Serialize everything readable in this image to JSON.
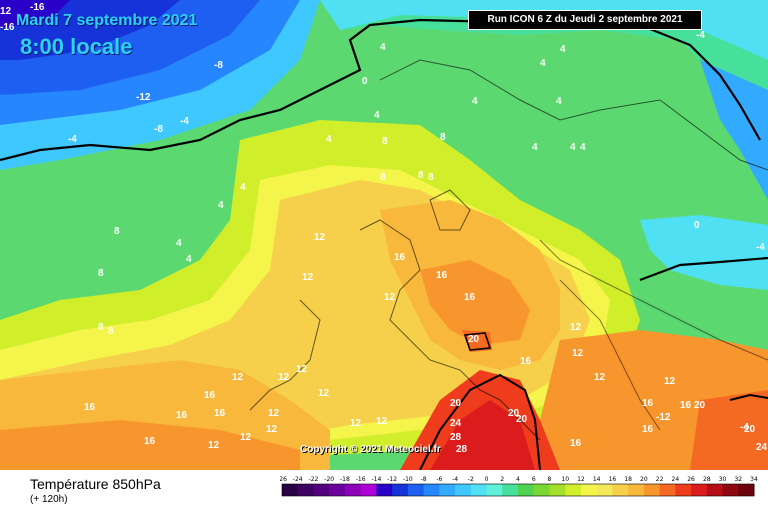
{
  "header": {
    "date": "Mardi 7 septembre 2021",
    "time": "8:00 locale",
    "run": "Run ICON 6 Z du Jeudi 2 septembre 2021",
    "corner_labels": [
      "12",
      "-16",
      "-16"
    ]
  },
  "copyright": "Copyright © 2021 Meteociel.fr",
  "footer": {
    "title": "Température 850hPa",
    "subtitle": "(+ 120h)"
  },
  "legend": {
    "ticks": [
      "-26",
      "-24",
      "-22",
      "-20",
      "-18",
      "-16",
      "-14",
      "-12",
      "-10",
      "-8",
      "-6",
      "-4",
      "-2",
      "0",
      "2",
      "4",
      "6",
      "8",
      "10",
      "12",
      "14",
      "16",
      "18",
      "20",
      "22",
      "24",
      "26",
      "28",
      "30",
      "32",
      "34"
    ],
    "colors": [
      "#2a0044",
      "#3d0060",
      "#53007e",
      "#6a009c",
      "#8c00b8",
      "#b000d8",
      "#2a00c8",
      "#1533d8",
      "#1e5ef0",
      "#2686ff",
      "#32aaff",
      "#3fc8ff",
      "#4fe0f4",
      "#5ef0d8",
      "#46e09a",
      "#4fd24f",
      "#7ad630",
      "#a4e02a",
      "#d0ee2a",
      "#f4f44a",
      "#f4e85a",
      "#f6d04a",
      "#f8b83c",
      "#f8962e",
      "#f46a22",
      "#ee3c1c",
      "#dc1c1c",
      "#b40e16",
      "#8e0812",
      "#6c040e"
    ]
  },
  "isotherm_labels": [
    {
      "text": "-8"
    },
    {
      "text": "-12"
    },
    {
      "text": "-8"
    },
    {
      "text": "-4"
    },
    {
      "text": "-4"
    },
    {
      "text": "0"
    },
    {
      "text": "4"
    },
    {
      "text": "4"
    },
    {
      "text": "4"
    },
    {
      "text": "4"
    },
    {
      "text": "4"
    },
    {
      "text": "4"
    },
    {
      "text": "4"
    },
    {
      "text": "4"
    },
    {
      "text": "4"
    },
    {
      "text": "4"
    },
    {
      "text": "4"
    },
    {
      "text": "4"
    },
    {
      "text": "4"
    },
    {
      "text": "4"
    },
    {
      "text": "8"
    },
    {
      "text": "8"
    },
    {
      "text": "8"
    },
    {
      "text": "8"
    },
    {
      "text": "8"
    },
    {
      "text": "8"
    },
    {
      "text": "8"
    },
    {
      "text": "8"
    },
    {
      "text": "8"
    },
    {
      "text": "12"
    },
    {
      "text": "12"
    },
    {
      "text": "12"
    },
    {
      "text": "12"
    },
    {
      "text": "12"
    },
    {
      "text": "12"
    },
    {
      "text": "12"
    },
    {
      "text": "12"
    },
    {
      "text": "12"
    },
    {
      "text": "12"
    },
    {
      "text": "12"
    },
    {
      "text": "12"
    },
    {
      "text": "12"
    },
    {
      "text": "12"
    },
    {
      "text": "12"
    },
    {
      "text": "12"
    },
    {
      "text": "12"
    },
    {
      "text": "-12"
    },
    {
      "text": "16"
    },
    {
      "text": "16"
    },
    {
      "text": "16"
    },
    {
      "text": "16"
    },
    {
      "text": "16"
    },
    {
      "text": "16"
    },
    {
      "text": "16"
    },
    {
      "text": "16"
    },
    {
      "text": "16"
    },
    {
      "text": "16"
    },
    {
      "text": "16"
    },
    {
      "text": "16"
    },
    {
      "text": "16"
    },
    {
      "text": "20"
    },
    {
      "text": "20"
    },
    {
      "text": "20"
    },
    {
      "text": "20"
    },
    {
      "text": "20"
    },
    {
      "text": "20"
    },
    {
      "text": "24"
    },
    {
      "text": "24"
    },
    {
      "text": "28"
    },
    {
      "text": "28"
    },
    {
      "text": "0"
    },
    {
      "text": "-4"
    },
    {
      "text": "-4"
    },
    {
      "text": "-4"
    }
  ]
}
